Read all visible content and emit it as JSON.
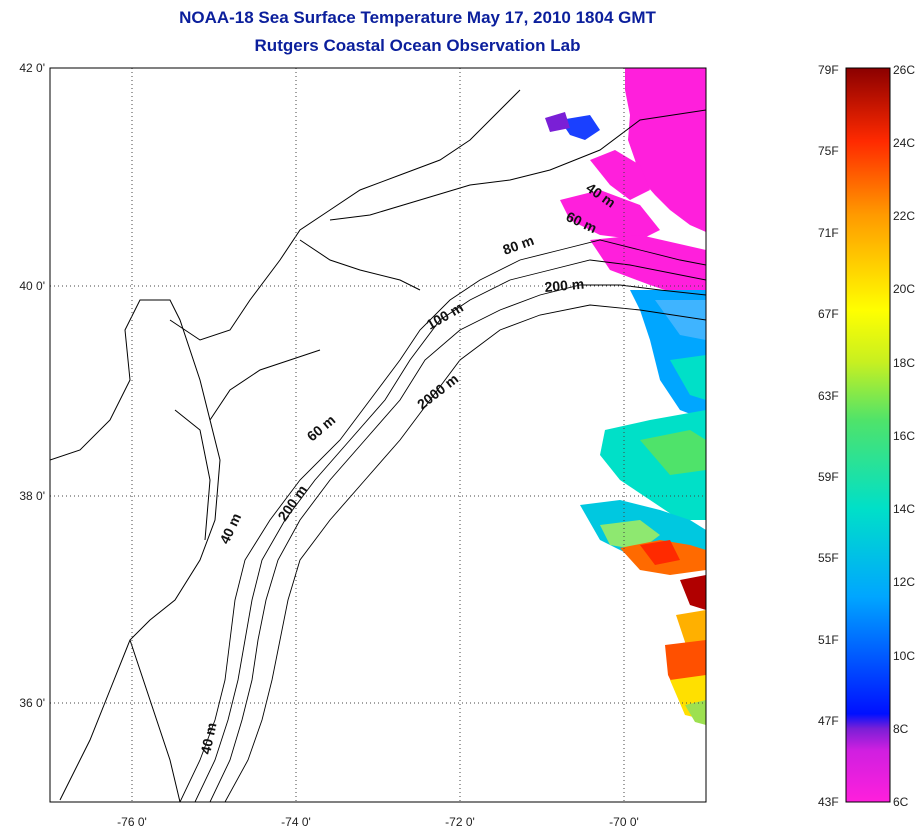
{
  "header": {
    "title_line1": "NOAA-18 Sea Surface Temperature May 17, 2010 1804 GMT",
    "title_line2": "Rutgers Coastal Ocean Observation Lab"
  },
  "map": {
    "lon_labels": [
      "-76 0'",
      "-74 0'",
      "-72 0'",
      "-70 0'"
    ],
    "lat_labels": [
      "42 0'",
      "40 0'",
      "38 0'",
      "36 0'"
    ],
    "lon_range": [
      -77,
      -69
    ],
    "lat_range": [
      35,
      42
    ],
    "grid": "dotted",
    "contour_labels": [
      "40 m",
      "60 m",
      "80 m",
      "100 m",
      "200 m",
      "2000 m",
      "60 m",
      "40 m",
      "200 m",
      "40 m"
    ]
  },
  "colorbar": {
    "fahrenheit_labels": [
      "79F",
      "75F",
      "71F",
      "67F",
      "63F",
      "59F",
      "55F",
      "51F",
      "47F",
      "43F"
    ],
    "celsius_labels": [
      "26C",
      "24C",
      "22C",
      "20C",
      "18C",
      "16C",
      "14C",
      "12C",
      "10C",
      "8C",
      "6C"
    ],
    "colors": [
      "#ff1fdc",
      "#7a1fd6",
      "#0010ff",
      "#00a6ff",
      "#00e0c8",
      "#4fe36a",
      "#ffff00",
      "#ff9a00",
      "#ff2a00",
      "#8b0000"
    ]
  }
}
